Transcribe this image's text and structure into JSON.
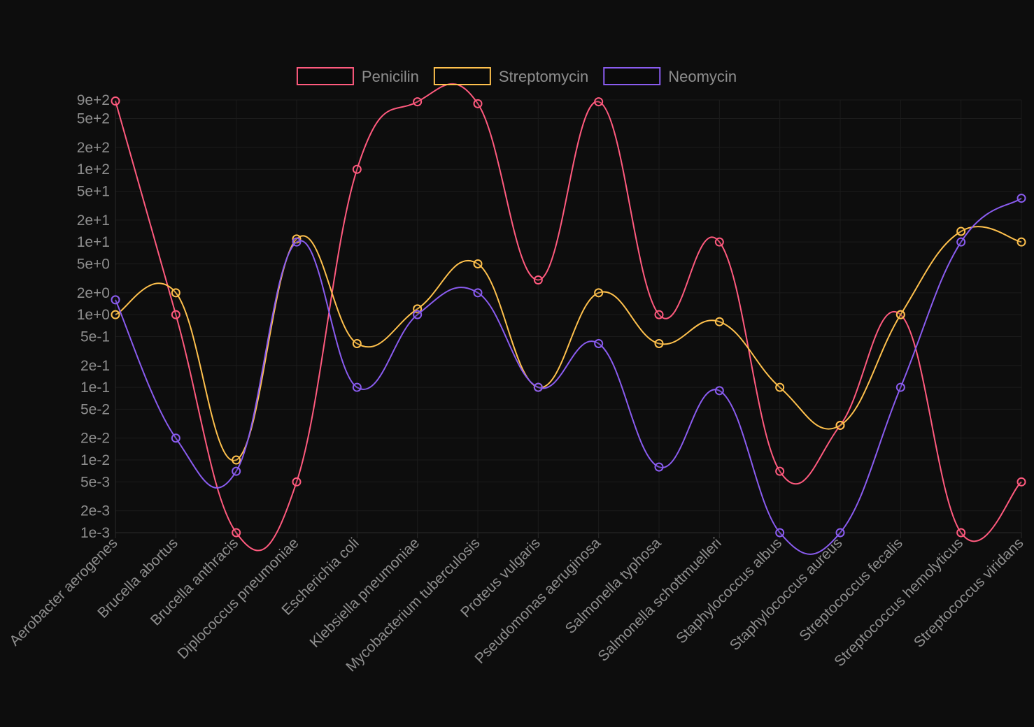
{
  "chart_data": {
    "type": "line",
    "y_scale": "log",
    "ylim": [
      0.001,
      900
    ],
    "y_ticks": [
      {
        "value": 0.001,
        "label": "1e-3"
      },
      {
        "value": 0.002,
        "label": "2e-3"
      },
      {
        "value": 0.005,
        "label": "5e-3"
      },
      {
        "value": 0.01,
        "label": "1e-2"
      },
      {
        "value": 0.02,
        "label": "2e-2"
      },
      {
        "value": 0.05,
        "label": "5e-2"
      },
      {
        "value": 0.1,
        "label": "1e-1"
      },
      {
        "value": 0.2,
        "label": "2e-1"
      },
      {
        "value": 0.5,
        "label": "5e-1"
      },
      {
        "value": 1,
        "label": "1e+0"
      },
      {
        "value": 2,
        "label": "2e+0"
      },
      {
        "value": 5,
        "label": "5e+0"
      },
      {
        "value": 10,
        "label": "1e+1"
      },
      {
        "value": 20,
        "label": "2e+1"
      },
      {
        "value": 50,
        "label": "5e+1"
      },
      {
        "value": 100,
        "label": "1e+2"
      },
      {
        "value": 200,
        "label": "2e+2"
      },
      {
        "value": 500,
        "label": "5e+2"
      },
      {
        "value": 900,
        "label": "9e+2"
      }
    ],
    "grid": true,
    "legend_position": "top",
    "categories": [
      "Aerobacter aerogenes",
      "Brucella abortus",
      "Brucella anthracis",
      "Diplococcus pneumoniae",
      "Escherichia coli",
      "Klebsiella pneumoniae",
      "Mycobacterium tuberculosis",
      "Proteus vulgaris",
      "Pseudomonas aeruginosa",
      "Salmonella typhosa",
      "Salmonella schottmuelleri",
      "Staphylococcus albus",
      "Staphylococcus aureus",
      "Streptococcus fecalis",
      "Streptococcus hemolyticus",
      "Streptococcus viridans"
    ],
    "series": [
      {
        "name": "Penicilin",
        "color": "#ff5a7e",
        "values": [
          870,
          1,
          0.001,
          0.005,
          100,
          850,
          800,
          3,
          850,
          1,
          10,
          0.007,
          0.03,
          1,
          0.001,
          0.005
        ]
      },
      {
        "name": "Streptomycin",
        "color": "#ffc14d",
        "values": [
          1,
          2,
          0.01,
          11,
          0.4,
          1.2,
          5,
          0.1,
          2,
          0.4,
          0.8,
          0.1,
          0.03,
          1,
          14,
          10
        ]
      },
      {
        "name": "Neomycin",
        "color": "#8a5cf0",
        "values": [
          1.6,
          0.02,
          0.007,
          10,
          0.1,
          1,
          2,
          0.1,
          0.4,
          0.008,
          0.09,
          0.001,
          0.001,
          0.1,
          10,
          40
        ]
      }
    ]
  }
}
